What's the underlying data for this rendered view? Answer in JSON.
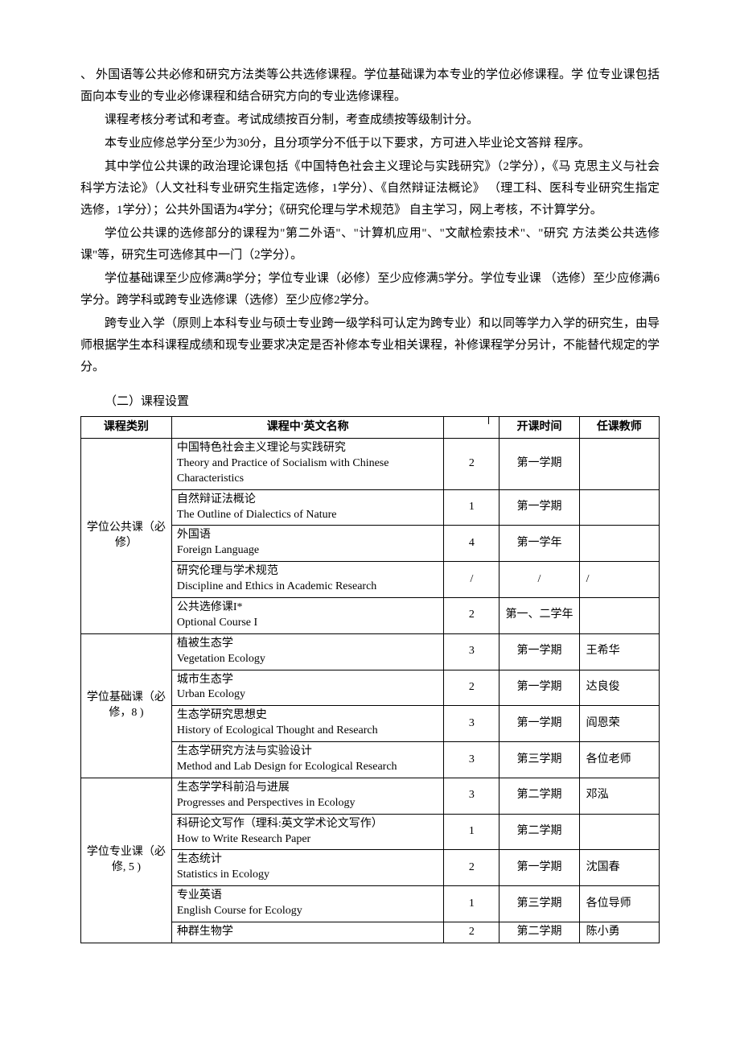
{
  "paragraphs": [
    {
      "text": "、 外国语等公共必修和研究方法类等公共选修课程。学位基础课为本专业的学位必修课程。学 位专业课包括面向本专业的专业必修课程和结合研究方向的专业选修课程。",
      "noIndent": true
    },
    {
      "text": "课程考核分考试和考查。考试成绩按百分制，考查成绩按等级制计分。"
    },
    {
      "text": "本专业应修总学分至少为30分，且分项学分不低于以下要求，方可进入毕业论文答辩 程序。"
    },
    {
      "text": "其中学位公共课的政治理论课包括《中国特色社会主义理论与实践研究》（2学分），《马 克思主义与社会科学方法论》（人文社科专业研究生指定选修，1学分）、《自然辩证法概论》 （理工科、医科专业研究生指定选修，1学分）；公共外国语为4学分；《研究伦理与学术规范》 自主学习，网上考核，不计算学分。"
    },
    {
      "text": "学位公共课的选修部分的课程为\"第二外语\"、\"计算机应用\"、\"文献检索技术\"、\"研究 方法类公共选修课\"等，研究生可选修其中一门（2学分）。"
    },
    {
      "text": "学位基础课至少应修满8学分；学位专业课（必修）至少应修满5学分。学位专业课 （选修）至少应修满6学分。跨学科或跨专业选修课（选修）至少应修2学分。"
    },
    {
      "text": "跨专业入学（原则上本科专业与硕士专业跨一级学科可认定为跨专业）和以同等学力入学的研究生，由导师根据学生本科课程成绩和现专业要求决定是否补修本专业相关课程，补修课程学分另计，不能替代规定的学分。"
    }
  ],
  "sectionTitle": "（二）课程设置",
  "table": {
    "headers": {
      "category": "课程类别",
      "course": "课程中'英文名称",
      "credit": "",
      "semester": "开课时间",
      "teacher": "任课教师"
    },
    "groups": [
      {
        "category": "学位公共课（必修）",
        "rows": [
          {
            "course": "中国特色社会主义理论与实践研究\nTheory and Practice of Socialism with Chinese Characteristics",
            "credit": "2",
            "semester": "第一学期",
            "teacher": ""
          },
          {
            "course": "自然辩证法概论\nThe Outline of Dialectics of Nature",
            "credit": "1",
            "semester": "第一学期",
            "teacher": ""
          },
          {
            "course": "外国语\nForeign Language",
            "credit": "4",
            "semester": "第一学年",
            "teacher": ""
          },
          {
            "course": "研究伦理与学术规范\nDiscipline and Ethics in Academic Research",
            "credit": "/",
            "semester": "/",
            "teacher": "/"
          },
          {
            "course": "公共选修课I*\nOptional Course I",
            "credit": "2",
            "semester": "第一、二学年",
            "teacher": ""
          }
        ]
      },
      {
        "category": "学位基础课（必修，8 )",
        "rows": [
          {
            "course": "植被生态学\nVegetation Ecology",
            "credit": "3",
            "semester": "第一学期",
            "teacher": "王希华"
          },
          {
            "course": "城市生态学\nUrban Ecology",
            "credit": "2",
            "semester": "第一学期",
            "teacher": "达良俊"
          },
          {
            "course": "生态学研究思想史\nHistory of Ecological Thought and Research",
            "credit": "3",
            "semester": "第一学期",
            "teacher": "阎恩荣"
          },
          {
            "course": "生态学研究方法与实验设计\nMethod and Lab Design for Ecological Research",
            "credit": "3",
            "semester": "第三学期",
            "teacher": "各位老师"
          }
        ]
      },
      {
        "category": "学位专业课（必修, 5 )",
        "rows": [
          {
            "course": "生态学学科前沿与进展\nProgresses and Perspectives in Ecology",
            "credit": "3",
            "semester": "第二学期",
            "teacher": "邓泓"
          },
          {
            "course": "科研论文写作（理科:英文学术论文写作）\nHow to Write Research Paper",
            "credit": "1",
            "semester": "第二学期",
            "teacher": ""
          },
          {
            "course": "生态统计\nStatistics in Ecology",
            "credit": "2",
            "semester": "第一学期",
            "teacher": "沈国春"
          },
          {
            "course": "专业英语\nEnglish Course for Ecology",
            "credit": "1",
            "semester": "第三学期",
            "teacher": "各位导师"
          },
          {
            "course": "种群生物学",
            "credit": "2",
            "semester": "第二学期",
            "teacher": "陈小勇"
          }
        ]
      }
    ]
  }
}
